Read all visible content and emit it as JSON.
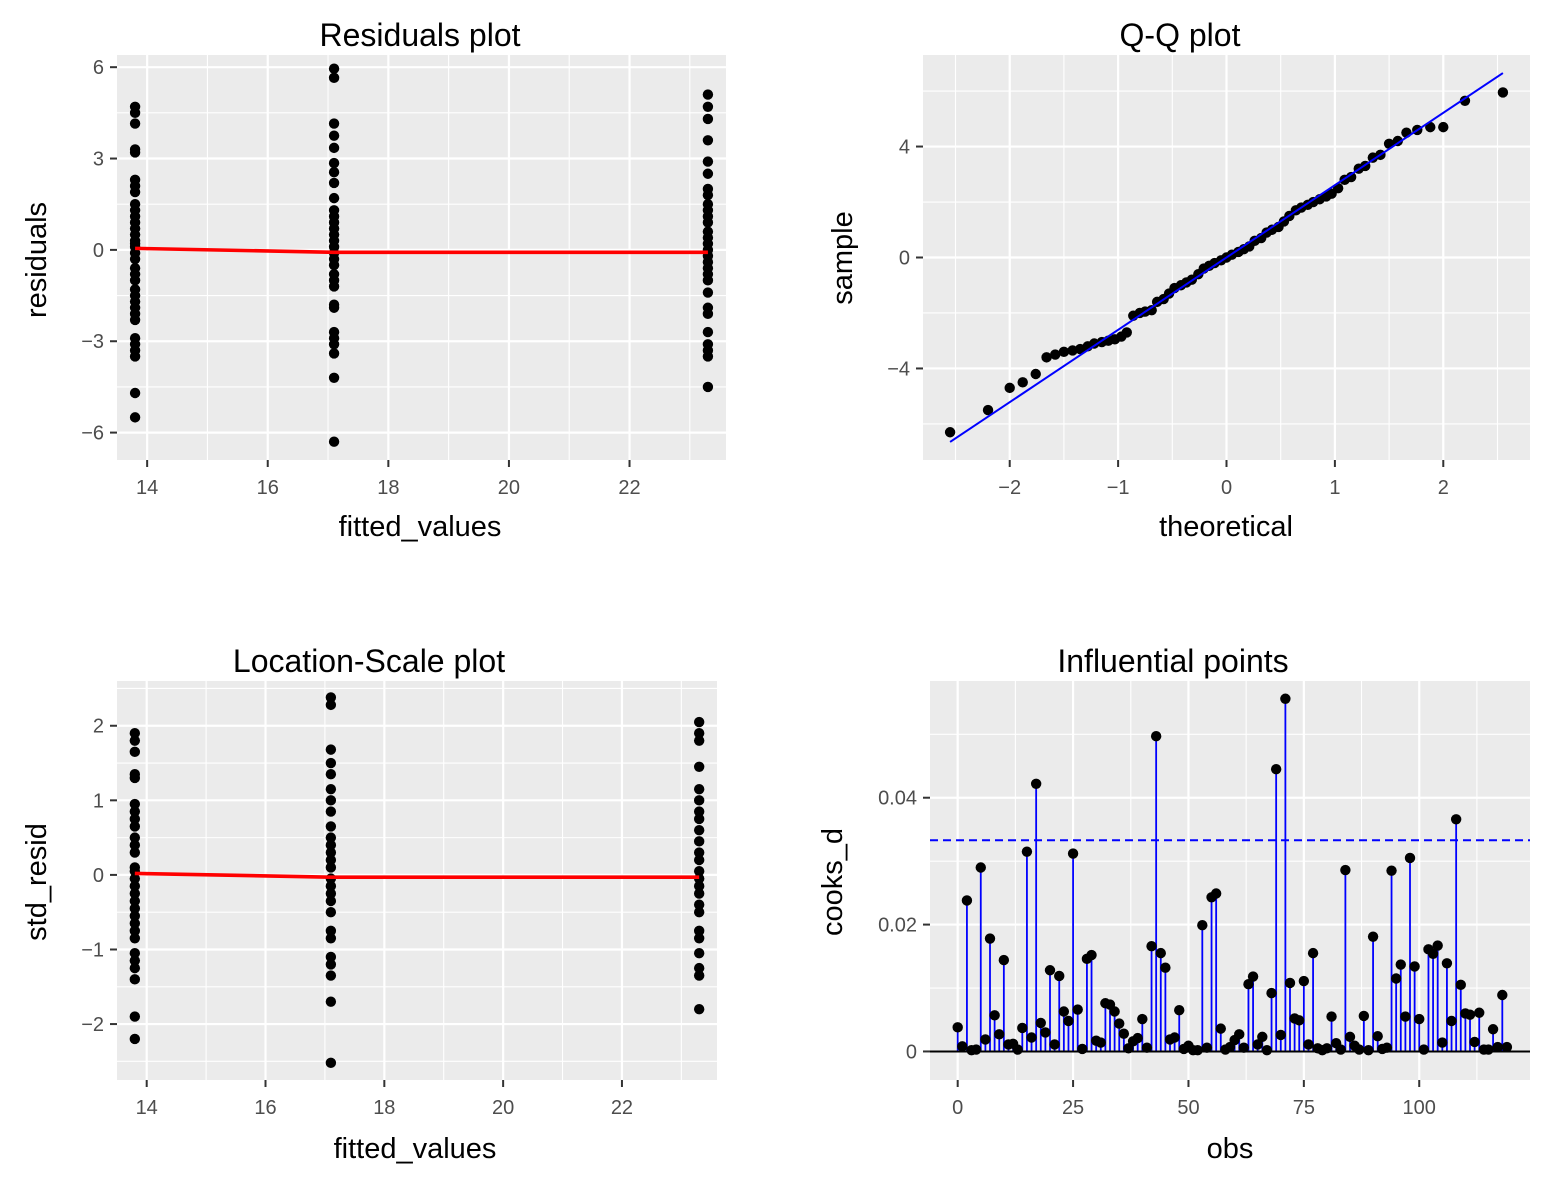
{
  "colors": {
    "panel": "#ebebeb",
    "grid": "#ffffff",
    "points": "#000000",
    "smooth": "#ff0000",
    "reference": "#0000ff",
    "baseline": "#000000"
  },
  "chart_data": [
    {
      "id": "residuals",
      "type": "scatter",
      "title": "Residuals plot",
      "xlabel": "fitted_values",
      "ylabel": "residuals",
      "xlim": [
        13.5,
        23.6
      ],
      "ylim": [
        -6.9,
        6.4
      ],
      "xticks": [
        14,
        16,
        18,
        20,
        22
      ],
      "yticks": [
        -6,
        -3,
        0,
        3,
        6
      ],
      "ytick_labels": [
        "−6",
        "−3",
        "0",
        "3",
        "6"
      ],
      "groups": [
        {
          "x": 13.8,
          "y": [
            4.7,
            4.5,
            4.15,
            3.3,
            3.2,
            2.3,
            2.1,
            1.9,
            1.5,
            1.3,
            1.1,
            0.9,
            0.7,
            0.5,
            0.3,
            0.2,
            0.1,
            -0.1,
            -0.3,
            -0.6,
            -0.8,
            -1.0,
            -1.3,
            -1.5,
            -1.7,
            -1.9,
            -2.1,
            -2.3,
            -2.9,
            -3.1,
            -3.3,
            -3.5,
            -4.7,
            -5.5
          ]
        },
        {
          "x": 17.1,
          "y": [
            5.95,
            5.65,
            4.15,
            3.75,
            3.35,
            2.85,
            2.55,
            2.2,
            1.7,
            1.3,
            1.1,
            0.9,
            0.7,
            0.5,
            0.3,
            0.1,
            -0.1,
            -0.3,
            -0.5,
            -0.8,
            -1.0,
            -1.2,
            -1.8,
            -1.9,
            -2.7,
            -2.9,
            -3.1,
            -3.4,
            -4.2,
            -6.3
          ]
        },
        {
          "x": 23.3,
          "y": [
            5.1,
            4.7,
            4.3,
            3.6,
            2.9,
            2.5,
            2.0,
            1.8,
            1.5,
            1.3,
            1.1,
            0.9,
            0.6,
            0.4,
            0.2,
            0.0,
            -0.2,
            -0.4,
            -0.6,
            -0.8,
            -1.0,
            -1.4,
            -1.9,
            -2.1,
            -2.7,
            -3.1,
            -3.3,
            -3.5,
            -4.5
          ]
        }
      ],
      "smooth": {
        "x": [
          13.8,
          17.1,
          23.3
        ],
        "y": [
          0.05,
          -0.08,
          -0.08
        ]
      }
    },
    {
      "id": "qq",
      "type": "scatter",
      "title": "Q-Q plot",
      "xlabel": "theoretical",
      "ylabel": "sample",
      "xlim": [
        -2.8,
        2.8
      ],
      "ylim": [
        -7.3,
        7.3
      ],
      "xticks": [
        -2,
        -1,
        0,
        1,
        2
      ],
      "xtick_labels": [
        "−2",
        "−1",
        "0",
        "1",
        "2"
      ],
      "yticks": [
        -4,
        0,
        4
      ],
      "ytick_labels": [
        "−4",
        "0",
        "4"
      ],
      "points": [
        [
          -2.55,
          -6.3
        ],
        [
          -2.2,
          -5.5
        ],
        [
          -2.0,
          -4.7
        ],
        [
          -1.88,
          -4.5
        ],
        [
          -1.76,
          -4.2
        ],
        [
          -1.66,
          -3.6
        ],
        [
          -1.58,
          -3.5
        ],
        [
          -1.5,
          -3.4
        ],
        [
          -1.42,
          -3.35
        ],
        [
          -1.35,
          -3.3
        ],
        [
          -1.28,
          -3.2
        ],
        [
          -1.22,
          -3.1
        ],
        [
          -1.15,
          -3.05
        ],
        [
          -1.09,
          -3.0
        ],
        [
          -1.03,
          -2.95
        ],
        [
          -0.97,
          -2.85
        ],
        [
          -0.92,
          -2.7
        ],
        [
          -0.86,
          -2.1
        ],
        [
          -0.8,
          -2.0
        ],
        [
          -0.75,
          -1.95
        ],
        [
          -0.69,
          -1.9
        ],
        [
          -0.64,
          -1.6
        ],
        [
          -0.58,
          -1.5
        ],
        [
          -0.53,
          -1.3
        ],
        [
          -0.48,
          -1.1
        ],
        [
          -0.42,
          -1.0
        ],
        [
          -0.37,
          -0.9
        ],
        [
          -0.32,
          -0.8
        ],
        [
          -0.26,
          -0.6
        ],
        [
          -0.21,
          -0.4
        ],
        [
          -0.16,
          -0.3
        ],
        [
          -0.11,
          -0.2
        ],
        [
          -0.05,
          -0.1
        ],
        [
          0.0,
          0.0
        ],
        [
          0.05,
          0.1
        ],
        [
          0.11,
          0.2
        ],
        [
          0.16,
          0.3
        ],
        [
          0.21,
          0.4
        ],
        [
          0.26,
          0.6
        ],
        [
          0.32,
          0.7
        ],
        [
          0.37,
          0.9
        ],
        [
          0.42,
          1.0
        ],
        [
          0.48,
          1.1
        ],
        [
          0.53,
          1.3
        ],
        [
          0.58,
          1.5
        ],
        [
          0.64,
          1.7
        ],
        [
          0.69,
          1.8
        ],
        [
          0.75,
          1.9
        ],
        [
          0.8,
          2.0
        ],
        [
          0.86,
          2.1
        ],
        [
          0.92,
          2.2
        ],
        [
          0.97,
          2.3
        ],
        [
          1.03,
          2.5
        ],
        [
          1.09,
          2.8
        ],
        [
          1.15,
          2.9
        ],
        [
          1.22,
          3.2
        ],
        [
          1.28,
          3.3
        ],
        [
          1.35,
          3.6
        ],
        [
          1.42,
          3.7
        ],
        [
          1.5,
          4.1
        ],
        [
          1.58,
          4.2
        ],
        [
          1.66,
          4.5
        ],
        [
          1.76,
          4.6
        ],
        [
          1.88,
          4.7
        ],
        [
          2.0,
          4.7
        ],
        [
          2.2,
          5.65
        ],
        [
          2.55,
          5.95
        ]
      ],
      "reference_line": {
        "x": [
          -2.55,
          2.55
        ],
        "y": [
          -6.65,
          6.65
        ]
      }
    },
    {
      "id": "location-scale",
      "type": "scatter",
      "title": "Location-Scale plot",
      "xlabel": "fitted_values",
      "ylabel": "std_resid",
      "xlim": [
        13.5,
        23.6
      ],
      "ylim": [
        -2.75,
        2.6
      ],
      "xticks": [
        14,
        16,
        18,
        20,
        22
      ],
      "yticks": [
        -2,
        -1,
        0,
        1,
        2
      ],
      "ytick_labels": [
        "−2",
        "−1",
        "0",
        "1",
        "2"
      ],
      "groups": [
        {
          "x": 13.8,
          "y": [
            1.9,
            1.8,
            1.65,
            1.35,
            1.3,
            0.95,
            0.85,
            0.75,
            0.65,
            0.5,
            0.4,
            0.3,
            0.1,
            0.05,
            -0.05,
            -0.15,
            -0.25,
            -0.35,
            -0.45,
            -0.55,
            -0.65,
            -0.75,
            -0.85,
            -1.05,
            -1.15,
            -1.25,
            -1.4,
            -1.9,
            -2.2
          ]
        },
        {
          "x": 17.1,
          "y": [
            2.38,
            2.28,
            1.68,
            1.5,
            1.35,
            1.15,
            1.0,
            0.85,
            0.65,
            0.5,
            0.4,
            0.3,
            0.2,
            0.1,
            -0.05,
            -0.15,
            -0.25,
            -0.35,
            -0.5,
            -0.75,
            -0.85,
            -1.1,
            -1.2,
            -1.35,
            -1.7,
            -2.52
          ]
        },
        {
          "x": 23.3,
          "y": [
            2.05,
            1.9,
            1.8,
            1.45,
            1.15,
            1.0,
            0.85,
            0.75,
            0.6,
            0.45,
            0.3,
            0.2,
            0.05,
            -0.05,
            -0.15,
            -0.25,
            -0.4,
            -0.5,
            -0.75,
            -0.85,
            -1.05,
            -1.25,
            -1.35,
            -1.8
          ]
        }
      ],
      "smooth": {
        "x": [
          13.8,
          17.1,
          23.3
        ],
        "y": [
          0.02,
          -0.03,
          -0.03
        ]
      }
    },
    {
      "id": "influential",
      "type": "stem",
      "title": "Influential points",
      "xlabel": "obs",
      "ylabel": "cooks_d",
      "xlim": [
        -6,
        124
      ],
      "ylim": [
        -0.0045,
        0.0584
      ],
      "xticks": [
        0,
        25,
        50,
        75,
        100
      ],
      "yticks": [
        0,
        0.02,
        0.04
      ],
      "ytick_labels": [
        "0",
        "0.02",
        "0.04"
      ],
      "threshold": 0.0333,
      "values": [
        0.0038,
        0.0008,
        0.0238,
        0.0002,
        0.0003,
        0.029,
        0.0019,
        0.0178,
        0.0057,
        0.0027,
        0.0144,
        0.0011,
        0.0012,
        0.0003,
        0.0037,
        0.0315,
        0.0022,
        0.0422,
        0.0045,
        0.003,
        0.0128,
        0.0011,
        0.0119,
        0.0063,
        0.0048,
        0.0312,
        0.0066,
        0.0004,
        0.0146,
        0.0152,
        0.0017,
        0.0014,
        0.0076,
        0.0074,
        0.0063,
        0.0044,
        0.0028,
        0.0005,
        0.0016,
        0.0021,
        0.0051,
        0.0006,
        0.0166,
        0.0497,
        0.0155,
        0.0132,
        0.0019,
        0.0022,
        0.0065,
        0.0004,
        0.0009,
        0.0002,
        0.0002,
        0.0199,
        0.0006,
        0.0243,
        0.0249,
        0.0036,
        0.0003,
        0.0007,
        0.0018,
        0.0027,
        0.0006,
        0.0106,
        0.0118,
        0.0011,
        0.0023,
        0.0002,
        0.0092,
        0.0445,
        0.0026,
        0.0556,
        0.0108,
        0.0052,
        0.0049,
        0.0111,
        0.0011,
        0.0155,
        0.0005,
        0.0002,
        0.0005,
        0.0055,
        0.0013,
        0.0003,
        0.0286,
        0.0023,
        0.0009,
        0.0003,
        0.0056,
        0.0002,
        0.0181,
        0.0024,
        0.0004,
        0.0006,
        0.0285,
        0.0115,
        0.0137,
        0.0055,
        0.0305,
        0.0134,
        0.0051,
        0.0003,
        0.0161,
        0.0154,
        0.0167,
        0.0014,
        0.0139,
        0.0048,
        0.0366,
        0.0105,
        0.006,
        0.0058,
        0.0015,
        0.0061,
        0.0003,
        0.0003,
        0.0035,
        0.0007,
        0.0089,
        0.0007
      ]
    }
  ]
}
